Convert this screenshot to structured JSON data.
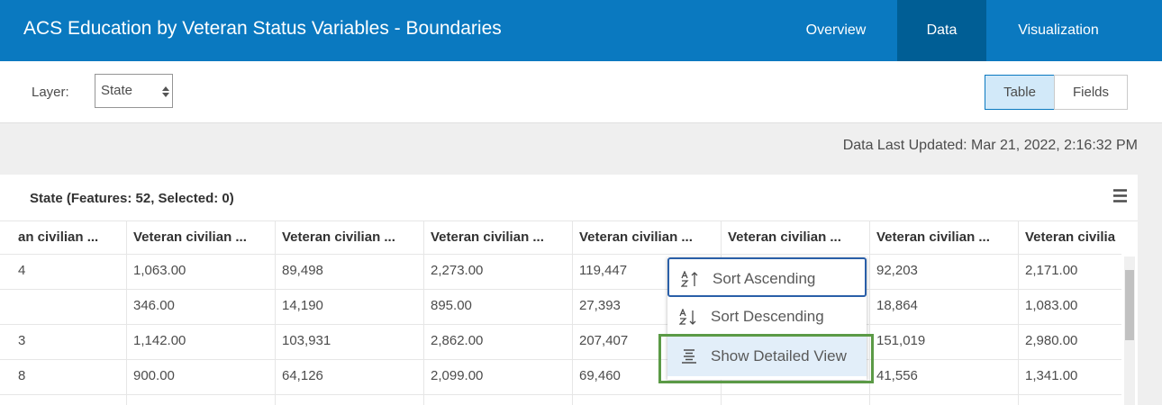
{
  "header": {
    "title": "ACS Education by Veteran Status Variables - Boundaries",
    "nav": [
      "Overview",
      "Data",
      "Visualization"
    ]
  },
  "toolbar": {
    "layer_label": "Layer:",
    "layer_value": "State",
    "views": [
      "Table",
      "Fields"
    ]
  },
  "last_updated": "Data Last Updated: Mar 21, 2022, 2:16:32 PM",
  "table": {
    "title": "State (Features: 52, Selected: 0)",
    "columns": [
      "an civilian ...",
      "Veteran civilian ...",
      "Veteran civilian ...",
      "Veteran civilian ...",
      "Veteran civilian ...",
      "Veteran civilian ...",
      "Veteran civilian ...",
      "Veteran civilia"
    ],
    "rows": [
      [
        "4",
        "1,063.00",
        "89,498",
        "2,273.00",
        "119,447",
        null,
        "92,203",
        "2,171.00"
      ],
      [
        null,
        "346.00",
        "14,190",
        "895.00",
        "27,393",
        null,
        "18,864",
        "1,083.00"
      ],
      [
        "3",
        "1,142.00",
        "103,931",
        "2,862.00",
        "207,407",
        null,
        "151,019",
        "2,980.00"
      ],
      [
        "8",
        "900.00",
        "64,126",
        "2,099.00",
        "69,460",
        null,
        "41,556",
        "1,341.00"
      ]
    ]
  },
  "menu": {
    "items": [
      "Sort Ascending",
      "Sort Descending",
      "Show Detailed View"
    ]
  }
}
